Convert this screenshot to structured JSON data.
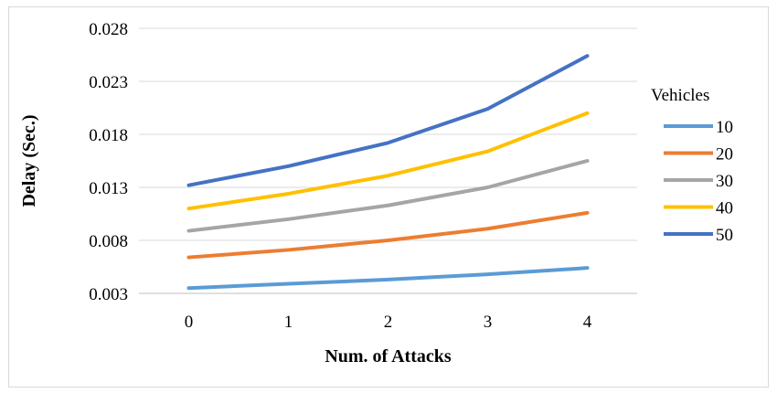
{
  "chart_data": {
    "type": "line",
    "title": "",
    "xlabel": "Num. of Attacks",
    "ylabel": "Delay (Sec.)",
    "x": [
      0,
      1,
      2,
      3,
      4
    ],
    "x_tick_labels": [
      "0",
      "1",
      "2",
      "3",
      "4"
    ],
    "ylim": [
      0.003,
      0.028
    ],
    "y_ticks": [
      0.003,
      0.008,
      0.013,
      0.018,
      0.023,
      0.028
    ],
    "y_tick_labels": [
      "0.003",
      "0.008",
      "0.013",
      "0.018",
      "0.023",
      "0.028"
    ],
    "grid": "horizontal",
    "legend": {
      "title": "Vehicles",
      "placement": "right"
    },
    "series": [
      {
        "name": "10",
        "color": "#5B9BD5",
        "values": [
          0.0035,
          0.0039,
          0.0043,
          0.0048,
          0.0054
        ]
      },
      {
        "name": "20",
        "color": "#ED7D31",
        "values": [
          0.0064,
          0.0071,
          0.008,
          0.0091,
          0.0106
        ]
      },
      {
        "name": "30",
        "color": "#A5A5A5",
        "values": [
          0.0089,
          0.01,
          0.0113,
          0.013,
          0.0155
        ]
      },
      {
        "name": "40",
        "color": "#FFC000",
        "values": [
          0.011,
          0.0124,
          0.0141,
          0.0164,
          0.02
        ]
      },
      {
        "name": "50",
        "color": "#4472C4",
        "values": [
          0.0132,
          0.015,
          0.0172,
          0.0204,
          0.0254
        ]
      }
    ]
  }
}
